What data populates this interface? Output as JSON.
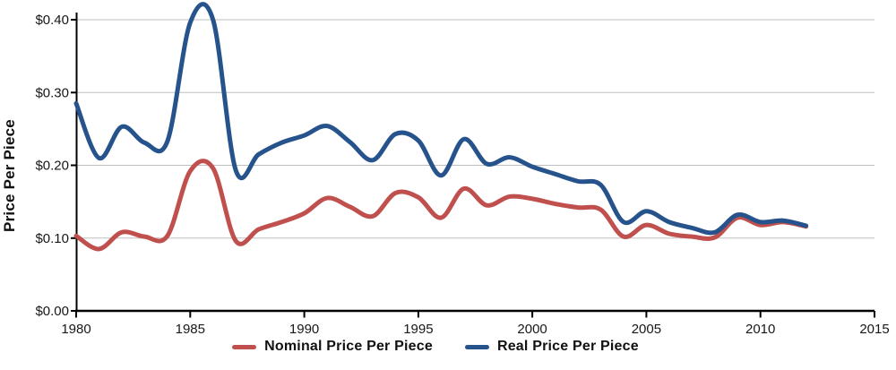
{
  "y_axis": {
    "title": "Price Per Piece"
  },
  "chart_data": {
    "type": "line",
    "title": "",
    "xlabel": "",
    "ylabel": "Price Per Piece",
    "smoothed": true,
    "grid": true,
    "legend_position": "bottom",
    "xlim": [
      1980,
      2015
    ],
    "ylim": [
      0.0,
      0.4
    ],
    "x_ticks": [
      1980,
      1985,
      1990,
      1995,
      2000,
      2005,
      2010,
      2015
    ],
    "x_tick_labels": [
      "1980",
      "1985",
      "1990",
      "1995",
      "2000",
      "2005",
      "2010",
      "2015"
    ],
    "y_ticks": [
      0.0,
      0.1,
      0.2,
      0.3,
      0.4
    ],
    "y_tick_labels": [
      "$0.00",
      "$0.10",
      "$0.20",
      "$0.30",
      "$0.40"
    ],
    "x": [
      1980,
      1981,
      1982,
      1983,
      1984,
      1985,
      1986,
      1987,
      1988,
      1989,
      1990,
      1991,
      1992,
      1993,
      1994,
      1995,
      1996,
      1997,
      1998,
      1999,
      2000,
      2001,
      2002,
      2003,
      2004,
      2005,
      2006,
      2007,
      2008,
      2009,
      2010,
      2011,
      2012
    ],
    "series": [
      {
        "name": "Nominal Price Per Piece",
        "color": "#C0504D",
        "values": [
          0.103,
          0.085,
          0.108,
          0.102,
          0.103,
          0.192,
          0.196,
          0.096,
          0.112,
          0.122,
          0.134,
          0.155,
          0.143,
          0.13,
          0.162,
          0.156,
          0.128,
          0.168,
          0.145,
          0.157,
          0.154,
          0.147,
          0.142,
          0.139,
          0.102,
          0.118,
          0.106,
          0.102,
          0.101,
          0.128,
          0.118,
          0.122,
          0.116
        ]
      },
      {
        "name": "Real Price Per Piece",
        "color": "#26538C",
        "values": [
          0.285,
          0.21,
          0.253,
          0.231,
          0.233,
          0.396,
          0.4,
          0.193,
          0.215,
          0.231,
          0.241,
          0.254,
          0.232,
          0.207,
          0.243,
          0.234,
          0.186,
          0.236,
          0.202,
          0.211,
          0.198,
          0.188,
          0.178,
          0.173,
          0.122,
          0.137,
          0.122,
          0.114,
          0.108,
          0.132,
          0.122,
          0.124,
          0.117
        ]
      }
    ],
    "gridline_color": "#BFBFBF",
    "axis_color": "#000000"
  }
}
